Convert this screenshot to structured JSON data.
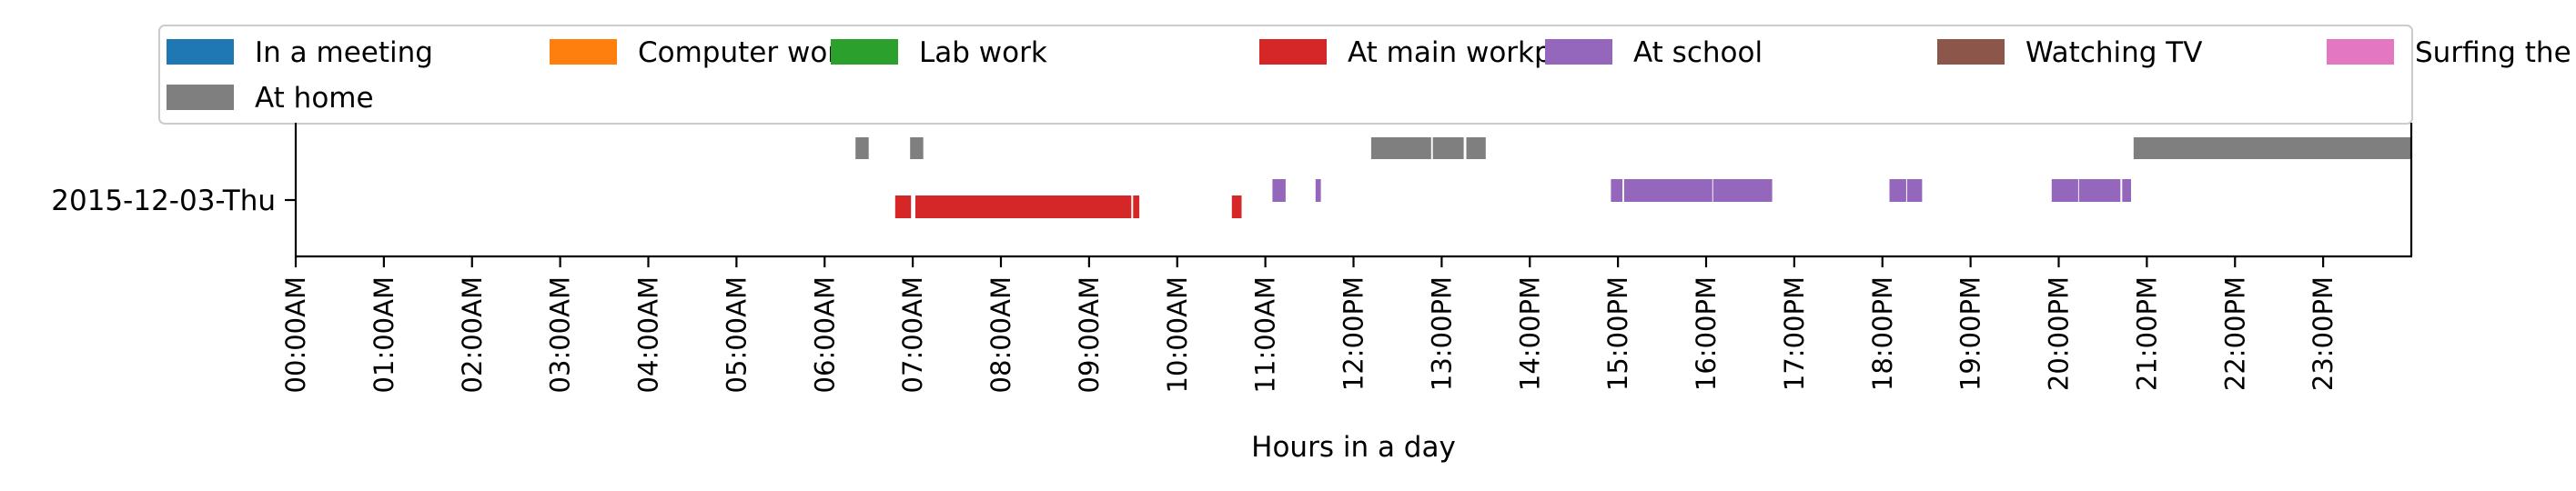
{
  "chart_data": {
    "type": "timeline",
    "title": "",
    "xlabel": "Hours in a day",
    "ylabel": "",
    "xlim": [
      0,
      24
    ],
    "grid": false,
    "legend_position": "top",
    "row_label": "2015-12-03-Thu",
    "x_tick_labels": [
      "00:00AM",
      "01:00AM",
      "02:00AM",
      "03:00AM",
      "04:00AM",
      "05:00AM",
      "06:00AM",
      "07:00AM",
      "08:00AM",
      "09:00AM",
      "10:00AM",
      "11:00AM",
      "12:00PM",
      "13:00PM",
      "14:00PM",
      "15:00PM",
      "16:00PM",
      "17:00PM",
      "18:00PM",
      "19:00PM",
      "20:00PM",
      "21:00PM",
      "22:00PM",
      "23:00PM"
    ],
    "series": [
      {
        "name": "In a meeting",
        "color": "#1f77b4",
        "lane": "lower",
        "intervals": []
      },
      {
        "name": "Computer work",
        "color": "#ff7f0e",
        "lane": "lower",
        "intervals": []
      },
      {
        "name": "Lab work",
        "color": "#2ca02c",
        "lane": "lower",
        "intervals": []
      },
      {
        "name": "At main workplace",
        "color": "#d62728",
        "lane": "lower",
        "intervals": [
          [
            6.8,
            6.98
          ],
          [
            7.03,
            9.48
          ],
          [
            9.5,
            9.57
          ],
          [
            10.62,
            10.73
          ]
        ]
      },
      {
        "name": "At school",
        "color": "#9467bd",
        "lane": "lower-upper",
        "intervals": [
          [
            11.08,
            11.23
          ],
          [
            11.57,
            11.63
          ],
          [
            14.92,
            15.05
          ],
          [
            15.07,
            16.07
          ],
          [
            16.08,
            16.75
          ],
          [
            18.08,
            18.27
          ],
          [
            18.28,
            18.45
          ],
          [
            19.92,
            20.22
          ],
          [
            20.23,
            20.7
          ],
          [
            20.72,
            20.82
          ]
        ]
      },
      {
        "name": "Watching TV",
        "color": "#8c564b",
        "lane": "lower",
        "intervals": []
      },
      {
        "name": "Surfing the internet",
        "color": "#e377c2",
        "lane": "lower",
        "intervals": []
      },
      {
        "name": "At home",
        "color": "#7f7f7f",
        "lane": "upper",
        "intervals": [
          [
            6.35,
            6.5
          ],
          [
            6.97,
            7.12
          ],
          [
            12.2,
            12.88
          ],
          [
            12.9,
            13.25
          ],
          [
            13.28,
            13.5
          ],
          [
            20.85,
            24.0
          ]
        ]
      }
    ]
  }
}
